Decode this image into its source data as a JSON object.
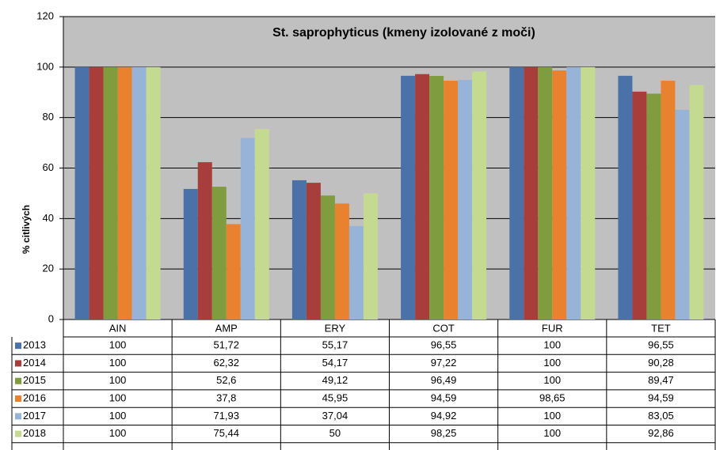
{
  "chart_data": {
    "type": "bar",
    "title": "St. saprophyticus (kmeny izolované z moči)",
    "y_label": "% citlivých",
    "categories": [
      "AIN",
      "AMP",
      "ERY",
      "COT",
      "FUR",
      "TET"
    ],
    "ylim": [
      0,
      120
    ],
    "yticks": [
      0,
      20,
      40,
      60,
      80,
      100,
      120
    ],
    "grid": true,
    "series": [
      {
        "name": "2013",
        "color": "#4a72a8",
        "values": [
          100,
          51.72,
          55.17,
          96.55,
          100,
          96.55
        ],
        "value_labels": [
          "100",
          "51,72",
          "55,17",
          "96,55",
          "100",
          "96,55"
        ]
      },
      {
        "name": "2014",
        "color": "#a83e3b",
        "values": [
          100,
          62.32,
          54.17,
          97.22,
          100,
          90.28
        ],
        "value_labels": [
          "100",
          "62,32",
          "54,17",
          "97,22",
          "100",
          "90,28"
        ]
      },
      {
        "name": "2015",
        "color": "#7f9c3e",
        "values": [
          100,
          52.6,
          49.12,
          96.49,
          100,
          89.47
        ],
        "value_labels": [
          "100",
          "52,6",
          "49,12",
          "96,49",
          "100",
          "89,47"
        ]
      },
      {
        "name": "2016",
        "color": "#e8822e",
        "values": [
          100,
          37.8,
          45.95,
          94.59,
          98.65,
          94.59
        ],
        "value_labels": [
          "100",
          "37,8",
          "45,95",
          "94,59",
          "98,65",
          "94,59"
        ]
      },
      {
        "name": "2017",
        "color": "#98b3d8",
        "values": [
          100,
          71.93,
          37.04,
          94.92,
          100,
          83.05
        ],
        "value_labels": [
          "100",
          "71,93",
          "37,04",
          "94,92",
          "100",
          "83,05"
        ]
      },
      {
        "name": "2018",
        "color": "#c5da91",
        "values": [
          100,
          75.44,
          50,
          98.25,
          100,
          92.86
        ],
        "value_labels": [
          "100",
          "75,44",
          "50",
          "98,25",
          "100",
          "92,86"
        ]
      }
    ]
  }
}
